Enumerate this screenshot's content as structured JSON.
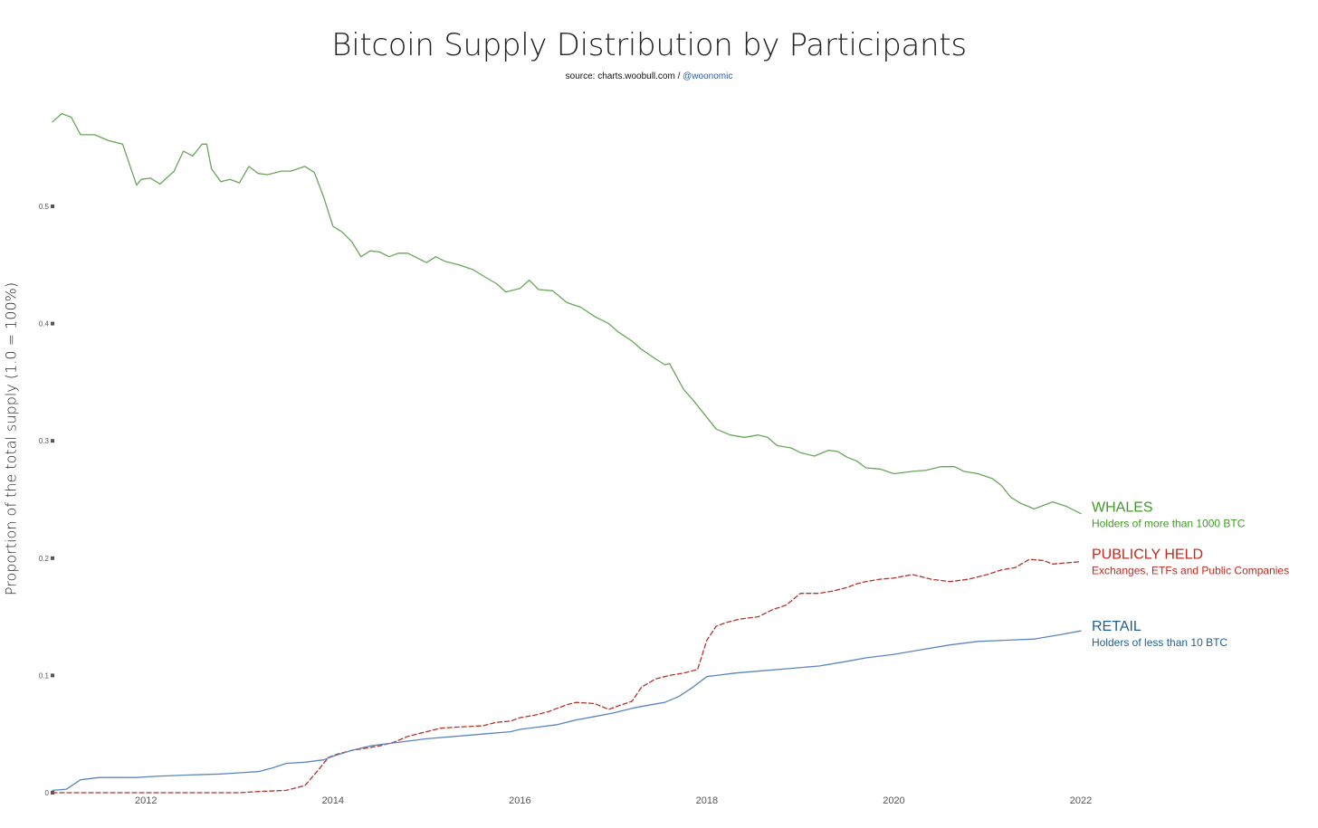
{
  "page": {
    "source_prefix": "source: charts.woobull.com / ",
    "source_handle": "@woonomic"
  },
  "chart_data": {
    "type": "line",
    "title": "Bitcoin Supply Distribution by Participants",
    "ylabel": "Proportion of the total supply (1.0 = 100%)",
    "xlabel": "",
    "xlim": [
      2011.0,
      2022.0
    ],
    "ylim": [
      0,
      0.58
    ],
    "x_ticks": [
      "2012",
      "2014",
      "2016",
      "2018",
      "2020",
      "2022"
    ],
    "x_tick_values": [
      2012,
      2014,
      2016,
      2018,
      2020,
      2022
    ],
    "y_ticks": [
      "0",
      "0.1",
      "0.2",
      "0.3",
      "0.4",
      "0.5"
    ],
    "y_tick_values": [
      0,
      0.1,
      0.2,
      0.3,
      0.4,
      0.5
    ],
    "grid": false,
    "legend": "inline-right",
    "series": [
      {
        "name": "WHALES",
        "description": "Holders of more than 1000 BTC",
        "color": "#6aa55c",
        "label_color": "#3e9a23",
        "style": "solid",
        "x": [
          2011.0,
          2011.1,
          2011.2,
          2011.3,
          2011.45,
          2011.6,
          2011.75,
          2011.9,
          2011.95,
          2012.05,
          2012.15,
          2012.3,
          2012.4,
          2012.5,
          2012.6,
          2012.65,
          2012.7,
          2012.8,
          2012.9,
          2013.0,
          2013.1,
          2013.2,
          2013.3,
          2013.45,
          2013.55,
          2013.7,
          2013.8,
          2013.9,
          2014.0,
          2014.1,
          2014.2,
          2014.3,
          2014.4,
          2014.5,
          2014.6,
          2014.7,
          2014.8,
          2014.9,
          2015.0,
          2015.1,
          2015.2,
          2015.35,
          2015.5,
          2015.6,
          2015.75,
          2015.85,
          2016.0,
          2016.1,
          2016.2,
          2016.35,
          2016.5,
          2016.65,
          2016.8,
          2016.95,
          2017.05,
          2017.2,
          2017.3,
          2017.45,
          2017.55,
          2017.6,
          2017.75,
          2017.85,
          2018.0,
          2018.1,
          2018.25,
          2018.4,
          2018.55,
          2018.65,
          2018.75,
          2018.9,
          2019.0,
          2019.15,
          2019.3,
          2019.4,
          2019.5,
          2019.6,
          2019.7,
          2019.85,
          2020.0,
          2020.2,
          2020.35,
          2020.5,
          2020.65,
          2020.75,
          2020.9,
          2021.05,
          2021.15,
          2021.25,
          2021.35,
          2021.5,
          2021.6,
          2021.7,
          2021.85,
          2022.0
        ],
        "y": [
          0.572,
          0.579,
          0.576,
          0.561,
          0.561,
          0.556,
          0.553,
          0.518,
          0.523,
          0.524,
          0.519,
          0.53,
          0.547,
          0.543,
          0.553,
          0.553,
          0.532,
          0.521,
          0.523,
          0.52,
          0.534,
          0.528,
          0.527,
          0.53,
          0.53,
          0.534,
          0.529,
          0.508,
          0.483,
          0.478,
          0.47,
          0.457,
          0.462,
          0.461,
          0.457,
          0.46,
          0.46,
          0.456,
          0.452,
          0.457,
          0.453,
          0.45,
          0.446,
          0.441,
          0.434,
          0.427,
          0.43,
          0.437,
          0.429,
          0.428,
          0.418,
          0.414,
          0.406,
          0.4,
          0.393,
          0.385,
          0.378,
          0.37,
          0.365,
          0.366,
          0.344,
          0.335,
          0.32,
          0.31,
          0.305,
          0.303,
          0.305,
          0.303,
          0.296,
          0.294,
          0.29,
          0.287,
          0.292,
          0.291,
          0.286,
          0.283,
          0.277,
          0.276,
          0.272,
          0.274,
          0.275,
          0.278,
          0.278,
          0.274,
          0.272,
          0.268,
          0.262,
          0.252,
          0.247,
          0.242,
          0.245,
          0.248,
          0.244,
          0.238
        ]
      },
      {
        "name": "PUBLICLY HELD",
        "description": "Exchanges, ETFs and Public Companies",
        "color": "#b5332b",
        "label_color": "#c0281e",
        "style": "dashed",
        "x": [
          2011.0,
          2012.0,
          2013.0,
          2013.2,
          2013.5,
          2013.7,
          2013.85,
          2013.95,
          2014.05,
          2014.2,
          2014.35,
          2014.5,
          2014.65,
          2014.8,
          2015.0,
          2015.15,
          2015.35,
          2015.6,
          2015.75,
          2015.9,
          2016.0,
          2016.15,
          2016.3,
          2016.5,
          2016.6,
          2016.8,
          2016.95,
          2017.05,
          2017.2,
          2017.3,
          2017.45,
          2017.6,
          2017.75,
          2017.9,
          2018.0,
          2018.1,
          2018.2,
          2018.35,
          2018.55,
          2018.7,
          2018.85,
          2019.0,
          2019.2,
          2019.35,
          2019.5,
          2019.6,
          2019.7,
          2019.85,
          2020.0,
          2020.2,
          2020.4,
          2020.6,
          2020.8,
          2021.0,
          2021.15,
          2021.3,
          2021.45,
          2021.6,
          2021.7,
          2021.85,
          2022.0
        ],
        "y": [
          0.0,
          0.0,
          0.0,
          0.001,
          0.002,
          0.006,
          0.02,
          0.03,
          0.033,
          0.036,
          0.038,
          0.04,
          0.043,
          0.048,
          0.052,
          0.055,
          0.056,
          0.057,
          0.06,
          0.061,
          0.064,
          0.066,
          0.069,
          0.075,
          0.077,
          0.076,
          0.071,
          0.074,
          0.078,
          0.09,
          0.097,
          0.1,
          0.102,
          0.105,
          0.13,
          0.142,
          0.145,
          0.148,
          0.15,
          0.156,
          0.16,
          0.17,
          0.17,
          0.172,
          0.175,
          0.178,
          0.18,
          0.182,
          0.183,
          0.186,
          0.182,
          0.18,
          0.182,
          0.186,
          0.19,
          0.192,
          0.199,
          0.198,
          0.195,
          0.196,
          0.197
        ]
      },
      {
        "name": "RETAIL",
        "description": "Holders of less than 10 BTC",
        "color": "#5a86bd",
        "label_color": "#1e5f93",
        "style": "solid",
        "x": [
          2011.0,
          2011.15,
          2011.3,
          2011.5,
          2011.7,
          2011.9,
          2012.1,
          2012.4,
          2012.8,
          2013.0,
          2013.2,
          2013.35,
          2013.5,
          2013.7,
          2013.9,
          2014.0,
          2014.2,
          2014.4,
          2014.6,
          2014.8,
          2015.0,
          2015.3,
          2015.6,
          2015.9,
          2016.0,
          2016.2,
          2016.4,
          2016.6,
          2016.8,
          2017.0,
          2017.2,
          2017.4,
          2017.55,
          2017.7,
          2017.85,
          2018.0,
          2018.1,
          2018.3,
          2018.6,
          2018.9,
          2019.2,
          2019.5,
          2019.7,
          2020.0,
          2020.3,
          2020.6,
          2020.9,
          2021.2,
          2021.5,
          2021.8,
          2022.0
        ],
        "y": [
          0.002,
          0.003,
          0.011,
          0.013,
          0.013,
          0.013,
          0.014,
          0.015,
          0.016,
          0.017,
          0.018,
          0.021,
          0.025,
          0.026,
          0.028,
          0.031,
          0.036,
          0.04,
          0.042,
          0.044,
          0.046,
          0.048,
          0.05,
          0.052,
          0.054,
          0.056,
          0.058,
          0.062,
          0.065,
          0.068,
          0.072,
          0.075,
          0.077,
          0.082,
          0.09,
          0.099,
          0.1,
          0.102,
          0.104,
          0.106,
          0.108,
          0.112,
          0.115,
          0.118,
          0.122,
          0.126,
          0.129,
          0.13,
          0.131,
          0.135,
          0.138
        ]
      }
    ]
  }
}
